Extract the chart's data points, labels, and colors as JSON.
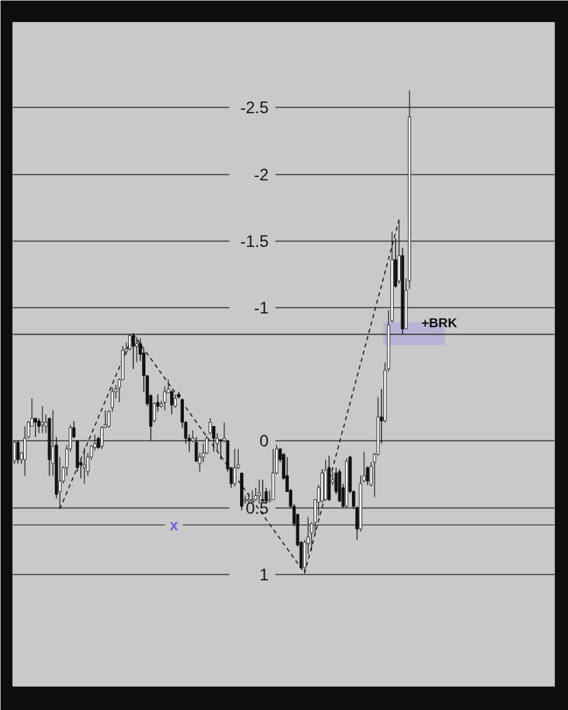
{
  "chart_data": {
    "type": "candlestick",
    "categories": [
      null,
      null,
      null,
      null,
      null,
      null,
      null,
      null,
      null,
      null,
      null,
      null,
      null,
      null,
      null,
      null,
      null,
      null,
      null,
      null,
      null,
      null,
      null,
      null,
      null,
      null,
      null,
      null,
      null,
      null,
      null,
      null,
      null,
      null,
      null,
      null,
      null,
      null,
      null,
      null,
      null,
      null,
      null,
      null,
      null,
      null,
      null,
      null,
      null,
      null,
      null,
      null,
      null,
      null,
      null,
      null,
      null,
      null,
      null,
      null,
      null,
      null,
      null,
      null,
      null,
      null,
      null,
      null,
      null,
      null,
      null,
      null,
      null,
      null,
      null,
      null,
      null,
      null,
      null,
      null,
      null,
      null,
      null,
      null,
      null,
      null,
      null,
      null,
      null,
      null,
      null,
      null,
      null,
      null,
      null,
      null,
      null,
      null,
      null,
      null,
      null,
      null,
      null,
      null,
      null,
      null,
      null,
      null,
      null,
      null,
      null,
      null,
      null,
      null,
      null,
      null,
      null,
      null,
      null,
      null,
      null,
      null,
      null,
      null,
      null,
      null,
      null,
      null,
      null,
      null,
      null,
      null,
      null,
      null,
      null,
      null,
      null,
      null,
      null,
      null,
      null,
      null,
      null,
      null,
      null,
      null,
      null,
      null,
      null,
      null,
      null,
      null,
      null,
      null,
      null
    ],
    "ohlc": [
      [
        0.15,
        0.17,
        0.0,
        0.01
      ],
      [
        0.01,
        0.17,
        0.0,
        0.14
      ],
      [
        0.14,
        0.17,
        0.08,
        0.09
      ],
      [
        0.14,
        0.26,
        -0.11,
        -0.02
      ],
      [
        -0.03,
        -0.02,
        -0.15,
        -0.14
      ],
      [
        -0.11,
        -0.11,
        -0.32,
        -0.17
      ],
      [
        -0.17,
        -0.03,
        -0.17,
        -0.14
      ],
      [
        -0.15,
        -0.06,
        -0.17,
        -0.11
      ],
      [
        -0.12,
        -0.06,
        -0.26,
        -0.14
      ],
      [
        -0.11,
        -0.06,
        -0.2,
        -0.14
      ],
      [
        -0.17,
        0.26,
        -0.17,
        0.14
      ],
      [
        0.17,
        0.26,
        -0.23,
        0.04
      ],
      [
        0.03,
        0.43,
        -0.03,
        0.4
      ],
      [
        0.38,
        0.51,
        0.12,
        0.3
      ],
      [
        0.3,
        0.32,
        0.19,
        0.2
      ],
      [
        0.2,
        0.26,
        0.03,
        0.06
      ],
      [
        0.06,
        0.08,
        -0.12,
        -0.1
      ],
      [
        -0.1,
        -0.02,
        -0.15,
        -0.03
      ],
      [
        0.0,
        0.23,
        0.0,
        0.2
      ],
      [
        0.16,
        0.28,
        0.14,
        0.18
      ],
      [
        0.2,
        0.32,
        0.05,
        0.18
      ],
      [
        0.23,
        0.26,
        0.09,
        0.12
      ],
      [
        0.12,
        0.14,
        0.03,
        0.04
      ],
      [
        0.05,
        0.07,
        -0.05,
        0.02
      ],
      [
        -0.02,
        0.06,
        -0.03,
        0.05
      ],
      [
        0.04,
        0.06,
        -0.11,
        -0.1
      ],
      [
        -0.1,
        -0.1,
        -0.23,
        -0.12
      ],
      [
        -0.11,
        -0.1,
        -0.23,
        -0.22
      ],
      [
        -0.25,
        -0.22,
        -0.4,
        -0.37
      ],
      [
        -0.37,
        -0.32,
        -0.42,
        -0.39
      ],
      [
        -0.4,
        -0.29,
        -0.47,
        -0.46
      ],
      [
        -0.46,
        -0.46,
        -0.71,
        -0.68
      ],
      [
        -0.67,
        -0.65,
        -0.74,
        -0.69
      ],
      [
        -0.69,
        -0.68,
        -0.8,
        -0.79
      ],
      [
        -0.79,
        -0.54,
        -0.81,
        -0.71
      ],
      [
        -0.71,
        -0.59,
        -0.78,
        -0.73
      ],
      [
        -0.73,
        -0.6,
        -0.77,
        -0.65
      ],
      [
        -0.66,
        -0.37,
        -0.69,
        -0.49
      ],
      [
        -0.49,
        -0.26,
        -0.49,
        -0.28
      ],
      [
        -0.34,
        0.0,
        -0.35,
        -0.11
      ],
      [
        -0.15,
        -0.14,
        -0.29,
        -0.28
      ],
      [
        -0.29,
        -0.22,
        -0.35,
        -0.26
      ],
      [
        -0.26,
        -0.25,
        -0.3,
        -0.28
      ],
      [
        -0.29,
        -0.23,
        -0.41,
        -0.37
      ],
      [
        -0.36,
        -0.36,
        -0.46,
        -0.39
      ],
      [
        -0.37,
        -0.2,
        -0.38,
        -0.27
      ],
      [
        -0.26,
        -0.25,
        -0.35,
        -0.32
      ],
      [
        -0.35,
        -0.32,
        -0.37,
        -0.33
      ],
      [
        -0.31,
        -0.1,
        -0.32,
        -0.14
      ],
      [
        -0.14,
        0.02,
        -0.15,
        -0.02
      ],
      [
        -0.02,
        0.08,
        -0.05,
        0.0
      ],
      [
        0.0,
        0.01,
        -0.08,
        -0.02
      ],
      [
        0.01,
        0.16,
        -0.03,
        0.15
      ],
      [
        0.17,
        0.23,
        0.09,
        0.12
      ],
      [
        0.12,
        0.16,
        0.02,
        0.09
      ],
      [
        0.09,
        0.1,
        -0.04,
        -0.02
      ],
      [
        -0.06,
        -0.05,
        -0.17,
        -0.14
      ],
      [
        -0.11,
        0.08,
        -0.11,
        -0.02
      ],
      [
        0.02,
        0.08,
        -0.06,
        -0.02
      ],
      [
        -0.01,
        0.14,
        -0.01,
        0.0
      ],
      [
        0.0,
        0.01,
        -0.14,
        -0.02
      ],
      [
        0.0,
        0.23,
        0.0,
        0.21
      ],
      [
        0.2,
        0.35,
        0.2,
        0.32
      ],
      [
        0.32,
        0.34,
        0.06,
        0.2
      ],
      [
        0.2,
        0.21,
        0.06,
        0.18
      ],
      [
        0.24,
        0.52,
        0.24,
        0.49
      ],
      [
        0.45,
        0.47,
        0.41,
        0.44
      ],
      [
        0.45,
        0.46,
        0.39,
        0.44
      ],
      [
        0.45,
        0.46,
        0.37,
        0.44
      ],
      [
        0.44,
        0.45,
        0.35,
        0.41
      ],
      [
        0.41,
        0.47,
        0.29,
        0.39
      ],
      [
        0.44,
        0.45,
        0.29,
        0.45
      ],
      [
        0.38,
        0.47,
        0.35,
        0.45
      ],
      [
        0.45,
        0.46,
        0.37,
        0.44
      ],
      [
        0.44,
        0.44,
        0.06,
        0.24
      ],
      [
        0.24,
        0.25,
        0.03,
        0.06
      ],
      [
        0.06,
        0.16,
        0.05,
        0.14
      ],
      [
        0.1,
        0.29,
        0.09,
        0.28
      ],
      [
        0.26,
        0.38,
        0.12,
        0.38
      ],
      [
        0.37,
        0.5,
        0.36,
        0.49
      ],
      [
        0.49,
        0.64,
        0.47,
        0.62
      ],
      [
        0.55,
        0.79,
        0.55,
        0.78
      ],
      [
        0.76,
        0.96,
        0.75,
        0.95
      ],
      [
        0.95,
        0.99,
        0.74,
        0.76
      ],
      [
        0.77,
        0.85,
        0.57,
        0.72
      ],
      [
        0.69,
        0.82,
        0.61,
        0.62
      ],
      [
        0.61,
        0.71,
        0.44,
        0.44
      ],
      [
        0.46,
        0.56,
        0.33,
        0.35
      ],
      [
        0.45,
        0.46,
        0.21,
        0.24
      ],
      [
        0.44,
        0.45,
        0.14,
        0.22
      ],
      [
        0.2,
        0.45,
        0.11,
        0.44
      ],
      [
        0.31,
        0.33,
        0.23,
        0.29
      ],
      [
        0.24,
        0.4,
        0.2,
        0.38
      ],
      [
        0.23,
        0.46,
        0.21,
        0.45
      ],
      [
        0.35,
        0.5,
        0.32,
        0.49
      ],
      [
        0.49,
        0.5,
        0.13,
        0.15
      ],
      [
        0.12,
        0.39,
        0.11,
        0.38
      ],
      [
        0.38,
        0.51,
        0.37,
        0.49
      ],
      [
        0.5,
        0.74,
        0.49,
        0.66
      ],
      [
        0.66,
        0.68,
        0.26,
        0.32
      ],
      [
        0.3,
        0.31,
        0.08,
        0.26
      ],
      [
        0.2,
        0.33,
        0.19,
        0.3
      ],
      [
        0.33,
        0.34,
        0.16,
        0.19
      ],
      [
        0.16,
        0.42,
        0.09,
        0.1
      ],
      [
        0.1,
        0.11,
        -0.33,
        -0.18
      ],
      [
        -0.18,
        0.02,
        -0.39,
        -0.15
      ],
      [
        -0.15,
        -0.14,
        -0.59,
        -0.53
      ],
      [
        -0.54,
        -0.52,
        -0.98,
        -0.87
      ],
      [
        -0.9,
        -0.89,
        -1.57,
        -1.36
      ],
      [
        -1.36,
        -1.15,
        -1.52,
        -1.16
      ],
      [
        -1.2,
        -1.18,
        -1.66,
        -1.39
      ],
      [
        -1.39,
        -0.8,
        -1.45,
        -0.84
      ],
      [
        -0.84,
        -0.84,
        -1.22,
        -1.13
      ],
      [
        -1.2,
        -1.14,
        -2.63,
        -2.43
      ],
      null,
      null,
      null,
      null,
      null,
      null,
      null,
      null,
      null,
      null,
      null,
      null,
      null,
      null,
      null,
      null,
      null,
      null,
      null,
      null,
      null,
      null,
      null,
      null,
      null,
      null,
      null,
      null,
      null,
      null,
      null,
      null,
      null,
      null,
      null,
      null,
      null,
      null,
      null,
      null,
      null
    ],
    "ylim": [
      1.84,
      -3.14
    ],
    "yticks": [
      1,
      0.5,
      0,
      -1,
      -1.5,
      -2,
      -2.5
    ],
    "tick_labels": "y",
    "grid": "y",
    "series": [
      {
        "type": "line",
        "color": "#1a1a1a",
        "line_style": "dashed",
        "values": [
          null,
          null,
          null,
          null,
          null,
          null,
          null,
          null,
          null,
          null,
          null,
          null,
          null,
          0.51,
          null,
          null,
          null,
          null,
          null,
          null,
          null,
          null,
          null,
          null,
          null,
          null,
          null,
          null,
          null,
          null,
          null,
          null,
          null,
          null,
          -0.8,
          null,
          null,
          null,
          null,
          null,
          null,
          null,
          null,
          null,
          null,
          null,
          null,
          null,
          null,
          null,
          null,
          null,
          null,
          null,
          null,
          null,
          null,
          null,
          null,
          null,
          null,
          null,
          null,
          null,
          null,
          null,
          null,
          null,
          null,
          null,
          null,
          null,
          null,
          null,
          null,
          null,
          null,
          null,
          null,
          null,
          null,
          null,
          null,
          0.99,
          null,
          null,
          null,
          null,
          null,
          null,
          null,
          null,
          null,
          null,
          null,
          null,
          null,
          null,
          null,
          null,
          null,
          null,
          null,
          null,
          null,
          null,
          null,
          null,
          null,
          null,
          -1.66,
          null,
          null,
          null,
          null,
          null,
          null,
          null,
          null,
          null,
          null,
          null,
          null,
          null,
          null,
          null,
          null,
          null,
          null,
          null,
          null,
          null,
          null,
          null,
          null,
          null,
          null,
          null,
          null,
          null,
          null,
          null,
          null,
          null,
          null,
          null,
          null,
          null,
          null,
          null,
          null,
          null,
          null,
          null,
          null
        ]
      }
    ],
    "ref_lines": [
      {
        "axis": "y",
        "value": -0.8,
        "label": "+BRK",
        "color": "#3a3a3a"
      },
      {
        "axis": "y",
        "value": 0.63,
        "label": "x",
        "color": "#4a4a4a"
      }
    ],
    "bands": [
      {
        "axis": "y",
        "from": -0.89,
        "to": -0.72,
        "color": "#bab2d6"
      }
    ]
  }
}
